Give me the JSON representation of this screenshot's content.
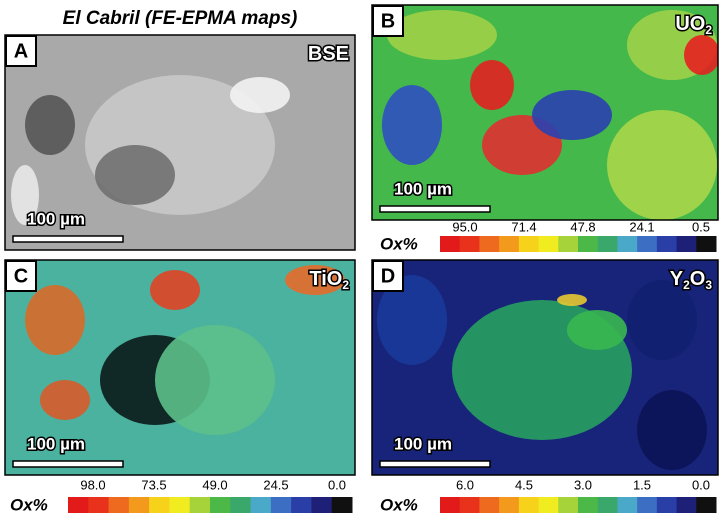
{
  "title": "El Cabril (FE-EPMA maps)",
  "panels": [
    {
      "letter": "A",
      "label": [
        "BSE"
      ],
      "scale_bar": "100 µm"
    },
    {
      "letter": "B",
      "label": [
        "UO",
        "2"
      ],
      "scale_bar": "100 µm"
    },
    {
      "letter": "C",
      "label": [
        "TiO",
        "2"
      ],
      "scale_bar": "100 µm"
    },
    {
      "letter": "D",
      "label": [
        "Y",
        "2",
        "O",
        "3"
      ],
      "scale_bar": "100 µm"
    }
  ],
  "colorbars": [
    {
      "axis_label": "Ox%",
      "ticks": [
        "95.0",
        "71.4",
        "47.8",
        "24.1",
        "0.5"
      ]
    },
    {
      "axis_label": "Ox%",
      "ticks": [
        "98.0",
        "73.5",
        "49.0",
        "24.5",
        "0.0"
      ]
    },
    {
      "axis_label": "Ox%",
      "ticks": [
        "6.0",
        "4.5",
        "3.0",
        "1.5",
        "0.0"
      ]
    }
  ]
}
